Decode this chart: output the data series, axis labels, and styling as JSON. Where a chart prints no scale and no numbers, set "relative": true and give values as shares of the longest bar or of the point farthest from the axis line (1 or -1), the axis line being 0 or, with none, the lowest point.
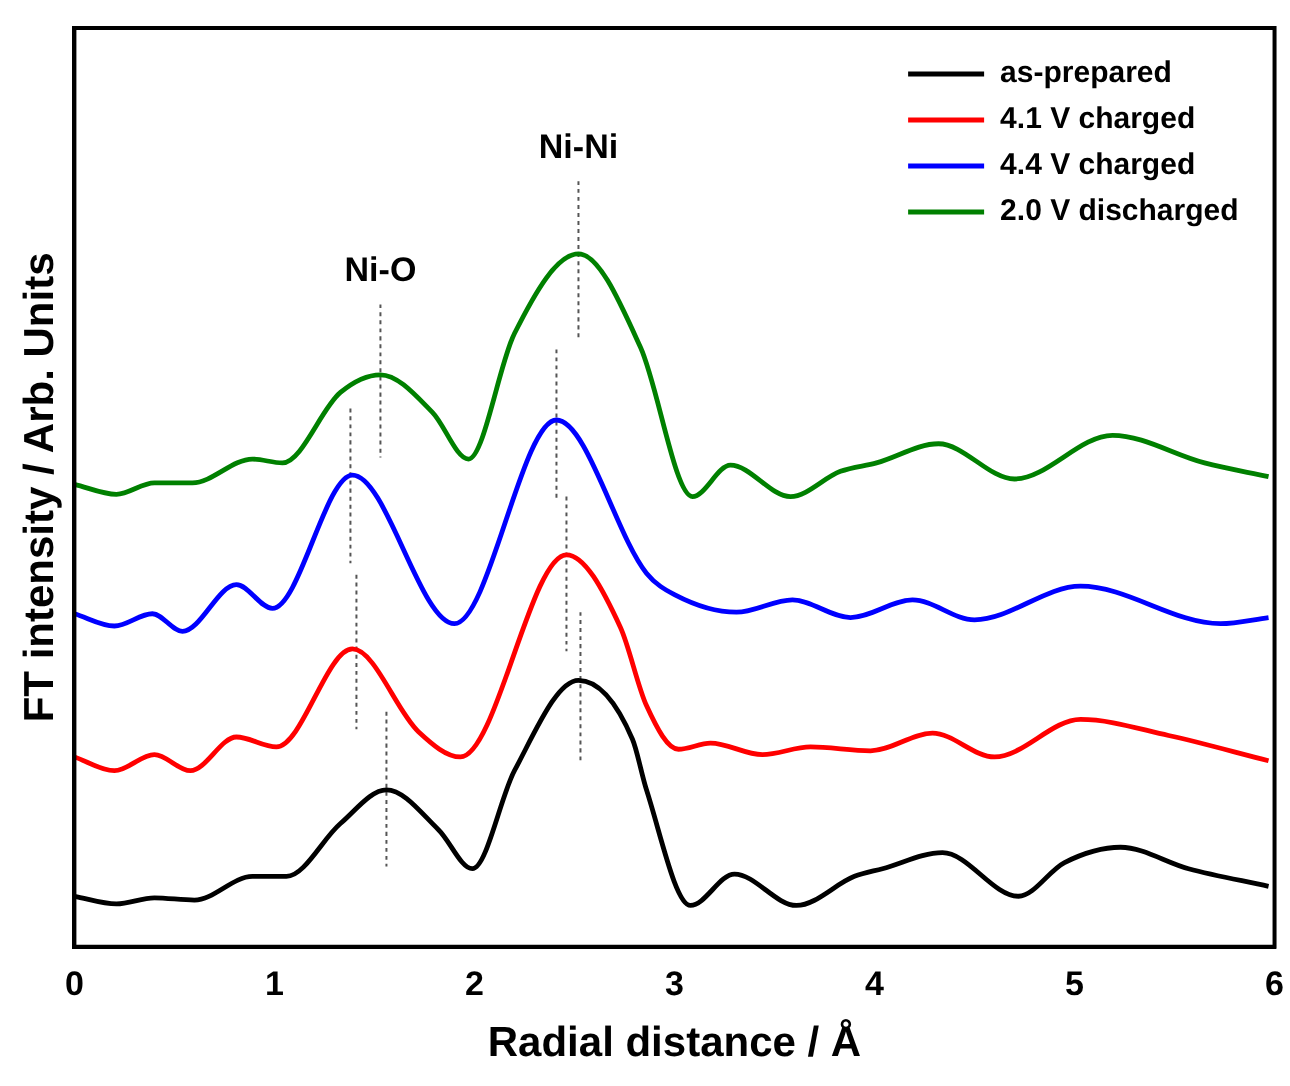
{
  "chart_data": {
    "type": "line",
    "relative": true,
    "xlabel": "Radial distance / Å",
    "ylabel": "FT intensity / Arb. Units",
    "xlim": [
      0,
      6
    ],
    "xticks": [
      0,
      1,
      2,
      3,
      4,
      5,
      6
    ],
    "legend": "top right",
    "grid": false,
    "marker": "none",
    "line_style": "solid",
    "annotations": [
      {
        "text": "Ni-O",
        "x": 1.53,
        "y": 0.839
      },
      {
        "text": "Ni-Ni",
        "x": 2.52,
        "y": 1
      }
    ],
    "series": [
      {
        "name": "as-prepared",
        "color": "#000000",
        "x": [
          0,
          0.21,
          0.4,
          0.6,
          0.89,
          1.06,
          1.33,
          1.56,
          1.82,
          1.99,
          2.2,
          2.52,
          2.79,
          2.86,
          3.08,
          3.3,
          3.61,
          3.9,
          4.04,
          4.34,
          4.72,
          4.95,
          5.23,
          5.57,
          5.97
        ],
        "values": [
          0.066,
          0.056,
          0.064,
          0.061,
          0.092,
          0.092,
          0.161,
          0.205,
          0.153,
          0.102,
          0.23,
          0.348,
          0.271,
          0.205,
          0.054,
          0.095,
          0.054,
          0.092,
          0.102,
          0.123,
          0.066,
          0.11,
          0.13,
          0.102,
          0.079
        ]
      },
      {
        "name": "4.1 V charged",
        "color": "#ff0000",
        "x": [
          0,
          0.2,
          0.4,
          0.58,
          0.81,
          1.01,
          1.39,
          1.72,
          1.93,
          2.46,
          2.73,
          2.86,
          3.02,
          3.18,
          3.44,
          3.68,
          3.98,
          4.29,
          4.6,
          5.03,
          5.47,
          5.97
        ],
        "values": [
          0.248,
          0.23,
          0.251,
          0.23,
          0.274,
          0.261,
          0.389,
          0.281,
          0.248,
          0.512,
          0.417,
          0.315,
          0.258,
          0.266,
          0.251,
          0.261,
          0.256,
          0.279,
          0.248,
          0.297,
          0.276,
          0.243
        ]
      },
      {
        "name": "4.4 V charged",
        "color": "#0000ff",
        "x": [
          0,
          0.2,
          0.39,
          0.54,
          0.81,
          0.99,
          1.39,
          1.9,
          2.41,
          2.86,
          3.0,
          3.31,
          3.59,
          3.88,
          4.19,
          4.5,
          5.03,
          5.73,
          5.97
        ],
        "values": [
          0.435,
          0.419,
          0.435,
          0.412,
          0.473,
          0.442,
          0.616,
          0.422,
          0.688,
          0.488,
          0.46,
          0.437,
          0.453,
          0.43,
          0.453,
          0.427,
          0.471,
          0.422,
          0.43
        ]
      },
      {
        "name": "2.0 V discharged",
        "color": "#008000",
        "x": [
          0,
          0.21,
          0.4,
          0.59,
          0.89,
          1.04,
          1.33,
          1.53,
          1.79,
          1.97,
          2.2,
          2.52,
          2.83,
          3.09,
          3.28,
          3.58,
          3.83,
          4.01,
          4.32,
          4.7,
          5.19,
          5.65,
          5.97
        ],
        "values": [
          0.604,
          0.591,
          0.606,
          0.606,
          0.637,
          0.632,
          0.724,
          0.747,
          0.698,
          0.637,
          0.801,
          0.905,
          0.783,
          0.588,
          0.629,
          0.588,
          0.621,
          0.632,
          0.657,
          0.611,
          0.668,
          0.632,
          0.614
        ]
      },
      {
        "color": "#555555",
        "line_style": "dotted",
        "x": [
          1.56,
          1.56
        ],
        "values": [
          0.307,
          0.105
        ]
      },
      {
        "color": "#555555",
        "line_style": "dotted",
        "x": [
          2.53,
          2.53
        ],
        "values": [
          0.437,
          0.243
        ]
      },
      {
        "color": "#555555",
        "line_style": "dotted",
        "x": [
          1.41,
          1.41
        ],
        "values": [
          0.486,
          0.284
        ]
      },
      {
        "color": "#555555",
        "line_style": "dotted",
        "x": [
          2.46,
          2.46
        ],
        "values": [
          0.588,
          0.386
        ]
      },
      {
        "color": "#555555",
        "line_style": "dotted",
        "x": [
          1.38,
          1.38
        ],
        "values": [
          0.703,
          0.501
        ]
      },
      {
        "color": "#555555",
        "line_style": "dotted",
        "x": [
          2.41,
          2.41
        ],
        "values": [
          0.78,
          0.583
        ]
      },
      {
        "color": "#555555",
        "line_style": "dotted",
        "x": [
          1.53,
          1.53
        ],
        "values": [
          0.839,
          0.639
        ]
      },
      {
        "color": "#555555",
        "line_style": "dotted",
        "x": [
          2.52,
          2.52
        ],
        "values": [
          1,
          0.793
        ]
      }
    ]
  }
}
